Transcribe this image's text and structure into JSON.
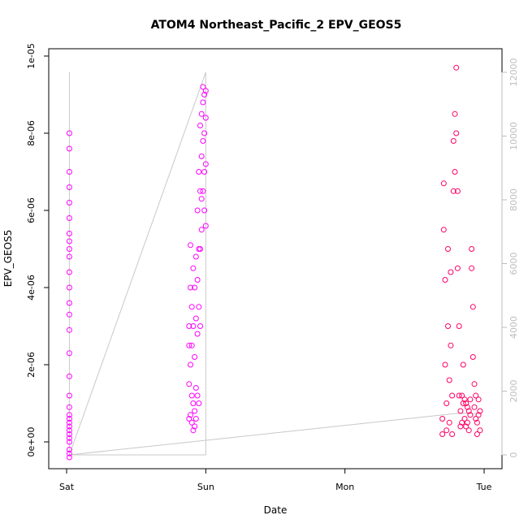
{
  "chart_data": {
    "type": "scatter",
    "title": "ATOM4 Northeast_Pacific_2 EPV_GEOS5",
    "xlabel": "Date",
    "ylabel": "EPV_GEOS5",
    "x_ticks": [
      "Sat",
      "Sun",
      "Mon",
      "Tue"
    ],
    "x_range_days": [
      0,
      3.05
    ],
    "ylim": [
      -5e-07,
      1e-05
    ],
    "y_ticks": [
      "0e+00",
      "2e-06",
      "4e-06",
      "6e-06",
      "8e-06",
      "1e-05"
    ],
    "y2_ticks": [
      "0",
      "2000",
      "4000",
      "6000",
      "8000",
      "10000",
      "12000"
    ],
    "y2_range": [
      -100,
      12300
    ],
    "colors": {
      "points_early": "#ff00ff",
      "points_late": "#ff0066",
      "secondary_line": "#c8c8c8"
    },
    "series": [
      {
        "values_x_days": [
          0.02,
          0.02,
          0.02,
          0.02,
          0.02,
          0.02,
          0.02,
          0.02,
          0.02,
          0.02,
          0.02,
          0.02,
          0.02,
          0.02,
          0.02,
          0.02,
          0.02,
          0.02,
          0.02,
          0.02,
          0.02,
          0.02,
          0.02,
          0.02,
          0.02,
          0.02,
          0.02,
          0.02,
          0.02,
          0.02,
          0.88,
          0.88,
          0.88,
          0.88,
          0.89,
          0.89,
          0.89,
          0.89,
          0.9,
          0.9,
          0.9,
          0.9,
          0.91,
          0.91,
          0.91,
          0.91,
          0.92,
          0.92,
          0.92,
          0.92,
          0.93,
          0.93,
          0.93,
          0.93,
          0.94,
          0.94,
          0.94,
          0.94,
          0.95,
          0.95,
          0.95,
          0.95,
          0.96,
          0.96,
          0.96,
          0.96,
          0.97,
          0.97,
          0.97,
          0.97,
          0.98,
          0.98,
          0.98,
          0.98,
          0.99,
          0.99,
          0.99,
          0.99,
          1.0,
          1.0,
          1.0,
          1.0,
          2.7,
          2.7,
          2.71,
          2.71,
          2.72,
          2.72,
          2.73,
          2.73,
          2.74,
          2.74,
          2.75,
          2.75,
          2.76,
          2.76,
          2.77,
          2.77,
          2.78,
          2.78,
          2.79,
          2.79,
          2.8,
          2.8,
          2.81,
          2.81,
          2.82,
          2.82,
          2.83,
          2.83,
          2.84,
          2.84,
          2.85,
          2.85,
          2.86,
          2.86,
          2.87,
          2.87,
          2.88,
          2.88,
          2.89,
          2.89,
          2.9,
          2.9,
          2.91,
          2.91,
          2.92,
          2.92,
          2.93,
          2.93,
          2.94,
          2.94,
          2.95,
          2.95,
          2.96,
          2.96,
          2.97,
          2.97
        ],
        "values_y": [
          8e-06,
          7.6e-06,
          7e-06,
          6.6e-06,
          6.2e-06,
          5.8e-06,
          5.4e-06,
          5.2e-06,
          5e-06,
          4.8e-06,
          4.4e-06,
          4e-06,
          3.6e-06,
          3.3e-06,
          2.9e-06,
          2.3e-06,
          1.7e-06,
          1.2e-06,
          9e-07,
          7e-07,
          6e-07,
          5e-07,
          4e-07,
          3e-07,
          2e-07,
          1e-07,
          0.0,
          -2e-07,
          -3e-07,
          -4e-07,
          3e-06,
          2.5e-06,
          1.5e-06,
          6e-07,
          5.1e-06,
          4e-06,
          2e-06,
          7e-07,
          3.5e-06,
          2.5e-06,
          1.2e-06,
          5e-07,
          4.5e-06,
          3e-06,
          1e-06,
          3e-07,
          4e-06,
          2.2e-06,
          8e-07,
          4e-07,
          4.8e-06,
          3.2e-06,
          1.4e-06,
          6e-07,
          6e-06,
          4.2e-06,
          2.8e-06,
          1.2e-06,
          7e-06,
          5e-06,
          3.5e-06,
          1e-06,
          8.2e-06,
          6.5e-06,
          5e-06,
          3e-06,
          8.5e-06,
          7.4e-06,
          6.3e-06,
          5.5e-06,
          9.2e-06,
          8.8e-06,
          7.8e-06,
          6.5e-06,
          9e-06,
          8e-06,
          7e-06,
          6e-06,
          9.1e-06,
          8.4e-06,
          7.2e-06,
          5.6e-06,
          6e-07,
          2e-07,
          6.7e-06,
          5.5e-06,
          4.2e-06,
          2e-06,
          1e-06,
          3e-07,
          5e-06,
          3e-06,
          1.6e-06,
          5e-07,
          4.4e-06,
          2.5e-06,
          1.2e-06,
          2e-07,
          7.8e-06,
          6.5e-06,
          8.5e-06,
          7e-06,
          9.7e-06,
          8e-06,
          6.5e-06,
          4.5e-06,
          3e-06,
          1.2e-06,
          8e-07,
          4e-07,
          1.2e-06,
          5e-07,
          2e-06,
          1e-06,
          1.1e-06,
          6e-07,
          1e-06,
          4e-07,
          9e-07,
          5e-07,
          8e-07,
          3e-07,
          1.1e-06,
          7e-07,
          5e-06,
          4.5e-06,
          3.5e-06,
          2.2e-06,
          1.5e-06,
          9e-07,
          1.2e-06,
          6e-07,
          5e-07,
          2e-07,
          1.1e-06,
          7e-07,
          8e-07,
          3e-07
        ]
      }
    ],
    "secondary_series": {
      "name": "",
      "values_x_days": [
        0.02,
        0.02,
        1.0,
        1.0,
        0.02,
        2.8,
        2.98
      ],
      "values_y2": [
        12000,
        0,
        12000,
        0,
        0,
        1300,
        1300
      ]
    }
  }
}
